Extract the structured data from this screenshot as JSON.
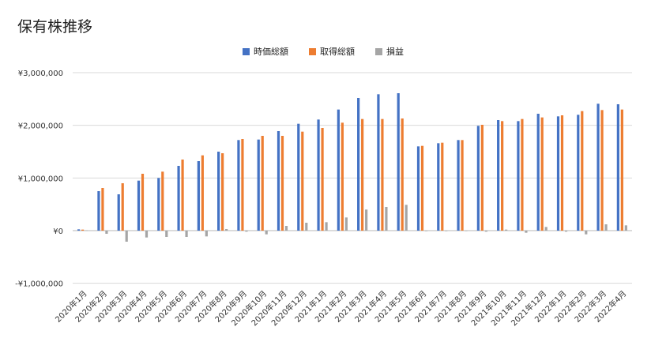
{
  "chart_data": {
    "type": "bar",
    "title": "保有株推移",
    "xlabel": "",
    "ylabel": "",
    "ylim": [
      -1000000,
      3000000
    ],
    "yticks": [
      3000000,
      2000000,
      1000000,
      0,
      -1000000
    ],
    "ytick_labels": [
      "¥3,000,000",
      "¥2,000,000",
      "¥1,000,000",
      "¥0",
      "-¥1,000,000"
    ],
    "grid": true,
    "legend_position": "top",
    "categories": [
      "2020年1月",
      "2020年2月",
      "2020年3月",
      "2020年4月",
      "2020年5月",
      "2020年6月",
      "2020年7月",
      "2020年8月",
      "2020年9月",
      "2020年10月",
      "2020年11月",
      "2020年12月",
      "2021年1月",
      "2021年2月",
      "2021年3月",
      "2021年4月",
      "2021年5月",
      "2021年6月",
      "2021年7月",
      "2021年8月",
      "2021年9月",
      "2021年10月",
      "2021年11月",
      "2021年12月",
      "2022年1月",
      "2022年2月",
      "2022年3月",
      "2022年4月"
    ],
    "series": [
      {
        "name": "時価総額",
        "color": "#4472c4",
        "values": [
          25000,
          750000,
          690000,
          950000,
          1000000,
          1230000,
          1320000,
          1500000,
          1720000,
          1730000,
          1890000,
          2030000,
          2110000,
          2300000,
          2520000,
          2590000,
          2610000,
          1600000,
          1660000,
          1720000,
          1990000,
          2100000,
          2080000,
          2220000,
          2170000,
          2200000,
          2410000,
          2400000
        ]
      },
      {
        "name": "取得総額",
        "color": "#ed7d31",
        "values": [
          20000,
          810000,
          900000,
          1080000,
          1120000,
          1350000,
          1430000,
          1470000,
          1740000,
          1800000,
          1800000,
          1880000,
          1950000,
          2050000,
          2120000,
          2120000,
          2130000,
          1610000,
          1670000,
          1720000,
          2010000,
          2080000,
          2120000,
          2150000,
          2190000,
          2270000,
          2290000,
          2300000
        ]
      },
      {
        "name": "損益",
        "color": "#a5a5a5",
        "values": [
          5000,
          -60000,
          -210000,
          -130000,
          -120000,
          -120000,
          -110000,
          30000,
          -20000,
          -70000,
          90000,
          150000,
          160000,
          250000,
          400000,
          450000,
          490000,
          -10000,
          -10000,
          0,
          -20000,
          20000,
          -40000,
          70000,
          -20000,
          -70000,
          120000,
          100000
        ]
      }
    ]
  }
}
